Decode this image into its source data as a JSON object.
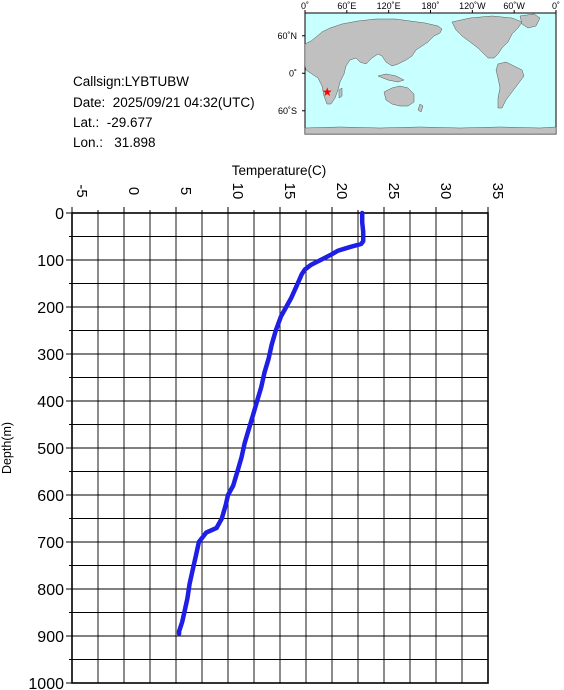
{
  "info": {
    "callsign": "Callsign:LYBTUBW",
    "date": "Date:  2025/09/21 04:32(UTC)",
    "lat": "Lat.:  -29.677",
    "lon": "Lon.:   31.898"
  },
  "map": {
    "top_labels": [
      "0˚",
      "60˚E",
      "120˚E",
      "180˚",
      "120˚W",
      "60˚W",
      "0˚"
    ],
    "left_labels": [
      "60˚N",
      "0˚",
      "60˚S"
    ],
    "ocean_color": "#c8ffff",
    "land_color": "#c0c0c0",
    "marker_color": "#ff0000",
    "marker": {
      "lat": -29.677,
      "lon": 31.898
    }
  },
  "chart_data": {
    "type": "line",
    "xlabel": "Temperature(C)",
    "ylabel": "Depth(m)",
    "xlim": [
      -5,
      35
    ],
    "ylim": [
      1000,
      0
    ],
    "x_ticks": [
      "-5",
      "0",
      "5",
      "10",
      "15",
      "20",
      "25",
      "30",
      "35"
    ],
    "y_ticks": [
      "0",
      "100",
      "200",
      "300",
      "400",
      "500",
      "600",
      "700",
      "800",
      "900",
      "1000"
    ],
    "grid": true,
    "line_color": "#1e1ee6",
    "series": [
      {
        "depth": [
          0,
          20,
          40,
          60,
          66,
          72,
          80,
          90,
          100,
          110,
          120,
          130,
          140,
          150,
          160,
          180,
          200,
          220,
          250,
          280,
          310,
          340,
          370,
          400,
          430,
          460,
          490,
          520,
          550,
          580,
          600,
          620,
          650,
          670,
          680,
          700,
          730,
          760,
          790,
          820,
          850,
          870,
          890,
          895
        ],
        "temperature": [
          22.9,
          22.9,
          23.0,
          23.0,
          22.8,
          21.8,
          20.6,
          19.8,
          18.9,
          18.0,
          17.4,
          17.1,
          16.9,
          16.7,
          16.5,
          16.1,
          15.6,
          15.1,
          14.6,
          14.2,
          13.9,
          13.5,
          13.2,
          12.8,
          12.4,
          12.0,
          11.6,
          11.3,
          10.9,
          10.5,
          10.0,
          9.8,
          9.4,
          8.9,
          7.9,
          7.2,
          6.9,
          6.6,
          6.3,
          6.1,
          5.8,
          5.6,
          5.3,
          5.3
        ]
      }
    ]
  }
}
